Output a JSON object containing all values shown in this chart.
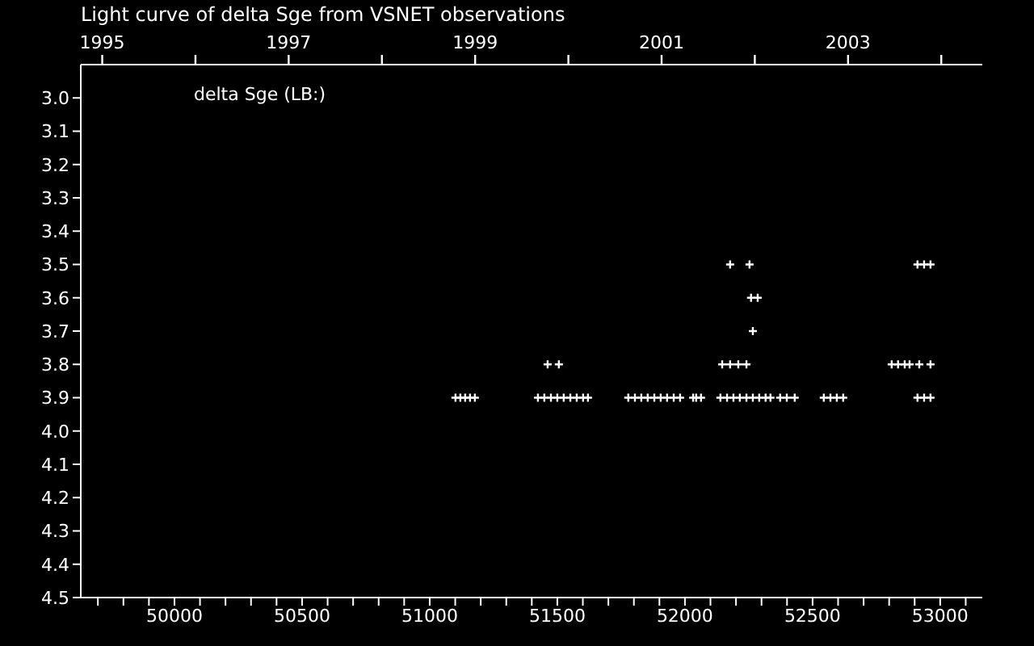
{
  "chart_data": {
    "type": "scatter",
    "title": "Light curve of delta Sge from VSNET observations",
    "xlim": [
      49633,
      53165
    ],
    "ylim": [
      4.5,
      2.9
    ],
    "xticks": [
      {
        "value": 49700,
        "label": null
      },
      {
        "value": 49800,
        "label": null
      },
      {
        "value": 49900,
        "label": null
      },
      50000,
      {
        "value": 50100,
        "label": null
      },
      {
        "value": 50200,
        "label": null
      },
      {
        "value": 50300,
        "label": null
      },
      {
        "value": 50400,
        "label": null
      },
      50500,
      {
        "value": 50600,
        "label": null
      },
      {
        "value": 50700,
        "label": null
      },
      {
        "value": 50800,
        "label": null
      },
      {
        "value": 50900,
        "label": null
      },
      51000,
      {
        "value": 51100,
        "label": null
      },
      {
        "value": 51200,
        "label": null
      },
      {
        "value": 51300,
        "label": null
      },
      {
        "value": 51400,
        "label": null
      },
      51500,
      {
        "value": 51600,
        "label": null
      },
      {
        "value": 51700,
        "label": null
      },
      {
        "value": 51800,
        "label": null
      },
      {
        "value": 51900,
        "label": null
      },
      52000,
      {
        "value": 52100,
        "label": null
      },
      {
        "value": 52200,
        "label": null
      },
      {
        "value": 52300,
        "label": null
      },
      {
        "value": 52400,
        "label": null
      },
      52500,
      {
        "value": 52600,
        "label": null
      },
      {
        "value": 52700,
        "label": null
      },
      {
        "value": 52800,
        "label": null
      },
      {
        "value": 52900,
        "label": null
      },
      53000,
      {
        "value": 53100,
        "label": null
      }
    ],
    "x2lim": [
      1994.77,
      2004.44
    ],
    "x2ticks": [
      1995,
      {
        "value": 1996,
        "label": null
      },
      1997,
      {
        "value": 1998,
        "label": null
      },
      1999,
      {
        "value": 2000,
        "label": null
      },
      2001,
      {
        "value": 2002,
        "label": null
      },
      2003,
      {
        "value": 2004,
        "label": null
      }
    ],
    "yticks": [
      {
        "value": 3,
        "label": "3.0"
      },
      3.1,
      3.2,
      3.3,
      3.4,
      3.5,
      3.6,
      3.7,
      3.8,
      3.9,
      {
        "value": 4,
        "label": "4.0"
      },
      4.1,
      4.2,
      4.3,
      4.4,
      4.5
    ],
    "grid": false,
    "legend": "top left",
    "marker": "cross",
    "series": [
      {
        "name": "delta Sge (LB:)",
        "color": "#ffffff",
        "x": [
          51101,
          51120,
          51139,
          51158,
          51177,
          51424,
          51449,
          51475,
          51500,
          51525,
          51551,
          51576,
          51601,
          51620,
          51778,
          51804,
          51829,
          51854,
          51880,
          51905,
          51930,
          51956,
          51981,
          52032,
          52044,
          52063,
          52139,
          52165,
          52190,
          52215,
          52241,
          52266,
          52291,
          52316,
          52335,
          52373,
          52399,
          52430,
          52544,
          52570,
          52595,
          52620,
          52911,
          52937,
          52962,
          51462,
          51506,
          52146,
          52177,
          52209,
          52241,
          52810,
          52835,
          52861,
          52880,
          52918,
          52962,
          52266,
          52259,
          52285,
          52177,
          52253,
          52911,
          52937,
          52962
        ],
        "values": [
          3.9,
          3.9,
          3.9,
          3.9,
          3.9,
          3.9,
          3.9,
          3.9,
          3.9,
          3.9,
          3.9,
          3.9,
          3.9,
          3.9,
          3.9,
          3.9,
          3.9,
          3.9,
          3.9,
          3.9,
          3.9,
          3.9,
          3.9,
          3.9,
          3.9,
          3.9,
          3.9,
          3.9,
          3.9,
          3.9,
          3.9,
          3.9,
          3.9,
          3.9,
          3.9,
          3.9,
          3.9,
          3.9,
          3.9,
          3.9,
          3.9,
          3.9,
          3.9,
          3.9,
          3.9,
          3.8,
          3.8,
          3.8,
          3.8,
          3.8,
          3.8,
          3.8,
          3.8,
          3.8,
          3.8,
          3.8,
          3.8,
          3.7,
          3.6,
          3.6,
          3.5,
          3.5,
          3.5,
          3.5,
          3.5
        ]
      }
    ]
  }
}
